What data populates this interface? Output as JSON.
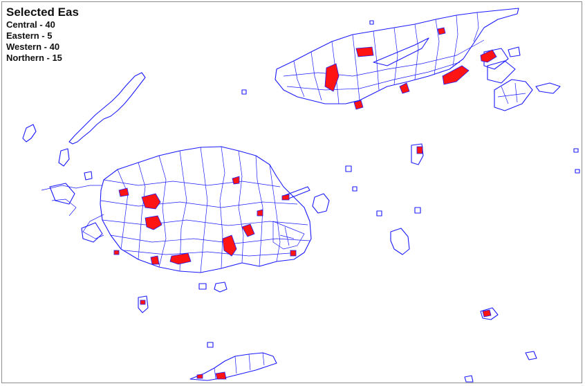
{
  "legend": {
    "title": "Selected Eas",
    "items": [
      {
        "region": "Central",
        "count": 40,
        "label": "Central - 40"
      },
      {
        "region": "Eastern",
        "count": 5,
        "label": "Eastern - 5"
      },
      {
        "region": "Western",
        "count": 40,
        "label": "Western - 40"
      },
      {
        "region": "Northern",
        "count": 15,
        "label": "Northern - 15"
      }
    ]
  },
  "colors": {
    "boundary": "#1a1aff",
    "selected": "#ff1414",
    "background": "#ffffff"
  }
}
